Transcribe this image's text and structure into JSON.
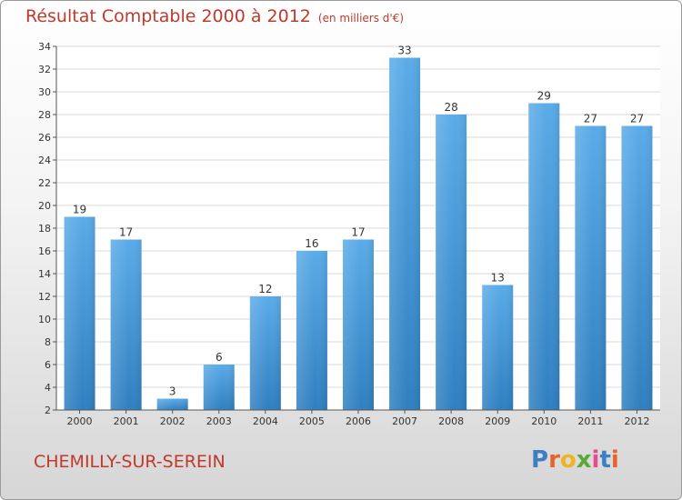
{
  "header": {
    "title": "Résultat Comptable 2000 à 2012",
    "subtitle": "(en milliers d'€)"
  },
  "commune": "CHEMILLY-SUR-SEREIN",
  "logo": {
    "text": "Proxiti",
    "colors": [
      "#3d7fc4",
      "#e8632b",
      "#f0b323",
      "#5aa83a",
      "#e84b8a",
      "#3d7fc4",
      "#e8632b"
    ]
  },
  "chart_data": {
    "type": "bar",
    "categories": [
      "2000",
      "2001",
      "2002",
      "2003",
      "2004",
      "2005",
      "2006",
      "2007",
      "2008",
      "2009",
      "2010",
      "2011",
      "2012"
    ],
    "values": [
      19,
      17,
      3,
      6,
      12,
      16,
      17,
      33,
      28,
      13,
      29,
      27,
      27
    ],
    "ylim": [
      2,
      34
    ],
    "yticks": [
      2,
      4,
      6,
      8,
      10,
      12,
      14,
      16,
      18,
      20,
      22,
      24,
      26,
      28,
      30,
      32,
      34
    ],
    "grid": true,
    "colors": {
      "bar_top": "#5aabe8",
      "bar_bottom": "#2f7fc0",
      "grid": "#d8d8d8",
      "axis_text": "#333333"
    }
  }
}
